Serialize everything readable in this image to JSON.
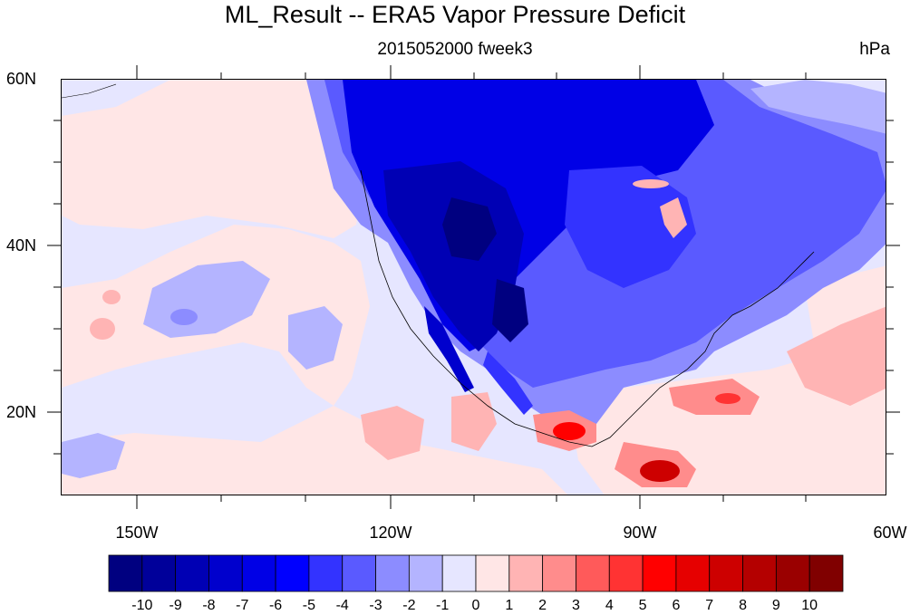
{
  "title": "ML_Result -- ERA5 Vapor Pressure Deficit",
  "subtitle": "2015052000 fweek3",
  "units": "hPa",
  "map": {
    "lat_labels": [
      "60N",
      "40N",
      "20N"
    ],
    "lon_labels": [
      "150W",
      "120W",
      "90W",
      "60W"
    ],
    "lat_range": [
      10,
      60
    ],
    "lon_range": [
      -159,
      -61
    ]
  },
  "colorbar": {
    "labels": [
      "-10",
      "-9",
      "-8",
      "-7",
      "-6",
      "-5",
      "-4",
      "-3",
      "-2",
      "-1",
      "0",
      "1",
      "2",
      "3",
      "4",
      "5",
      "6",
      "7",
      "8",
      "9",
      "10"
    ],
    "colors": [
      "#000080",
      "#00009a",
      "#0000b4",
      "#0000cd",
      "#0000e6",
      "#0000ff",
      "#3333ff",
      "#5a5aff",
      "#8c8cff",
      "#b4b4ff",
      "#e6e6ff",
      "#ffe6e6",
      "#ffb4b4",
      "#ff8c8c",
      "#ff5a5a",
      "#ff3333",
      "#ff0000",
      "#e60000",
      "#cd0000",
      "#b40000",
      "#9a0000",
      "#800000"
    ]
  }
}
